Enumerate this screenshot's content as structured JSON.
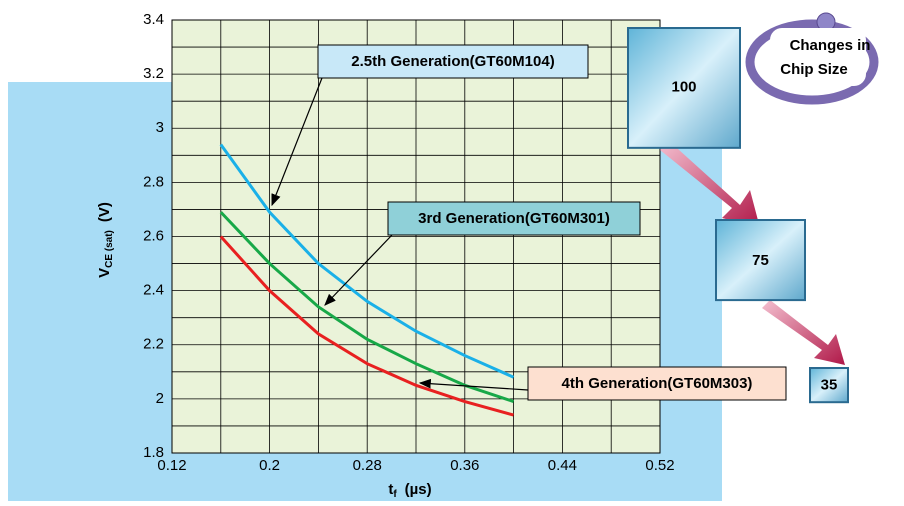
{
  "chart_data": {
    "type": "line",
    "ylabel": {
      "main": "V",
      "sub": "CE (sat)",
      "unit": "(V)"
    },
    "xlabel": {
      "main": "t",
      "sub": "f",
      "unit": "(µs)"
    },
    "x": [
      0.16,
      0.2,
      0.24,
      0.28,
      0.32,
      0.36,
      0.4
    ],
    "series": [
      {
        "name": "2.5th Generation(GT60M104)",
        "color": "#1ab0e8",
        "values": [
          2.94,
          2.69,
          2.5,
          2.36,
          2.25,
          2.16,
          2.08
        ]
      },
      {
        "name": "3rd Generation(GT60M301)",
        "color": "#18a848",
        "values": [
          2.69,
          2.5,
          2.34,
          2.22,
          2.13,
          2.05,
          1.99
        ]
      },
      {
        "name": "4th Generation(GT60M303)",
        "color": "#e82020",
        "values": [
          2.6,
          2.4,
          2.24,
          2.13,
          2.05,
          1.99,
          1.94
        ]
      }
    ],
    "xlim": [
      0.12,
      0.52
    ],
    "ylim": [
      1.8,
      3.4
    ],
    "xticks": [
      0.12,
      0.2,
      0.28,
      0.36,
      0.44,
      0.52
    ],
    "yticks": [
      1.8,
      2,
      2.2,
      2.4,
      2.6,
      2.8,
      3,
      3.2,
      3.4
    ],
    "minor_xticks": [
      0.16,
      0.24,
      0.32,
      0.4,
      0.48
    ],
    "minor_yticks": [
      1.9,
      2.1,
      2.3,
      2.5,
      2.7,
      2.9,
      3.1,
      3.3
    ],
    "grid": true
  },
  "chip_size": {
    "title": [
      "Changes in",
      "Chip Size"
    ],
    "values": [
      100,
      75,
      35
    ]
  }
}
